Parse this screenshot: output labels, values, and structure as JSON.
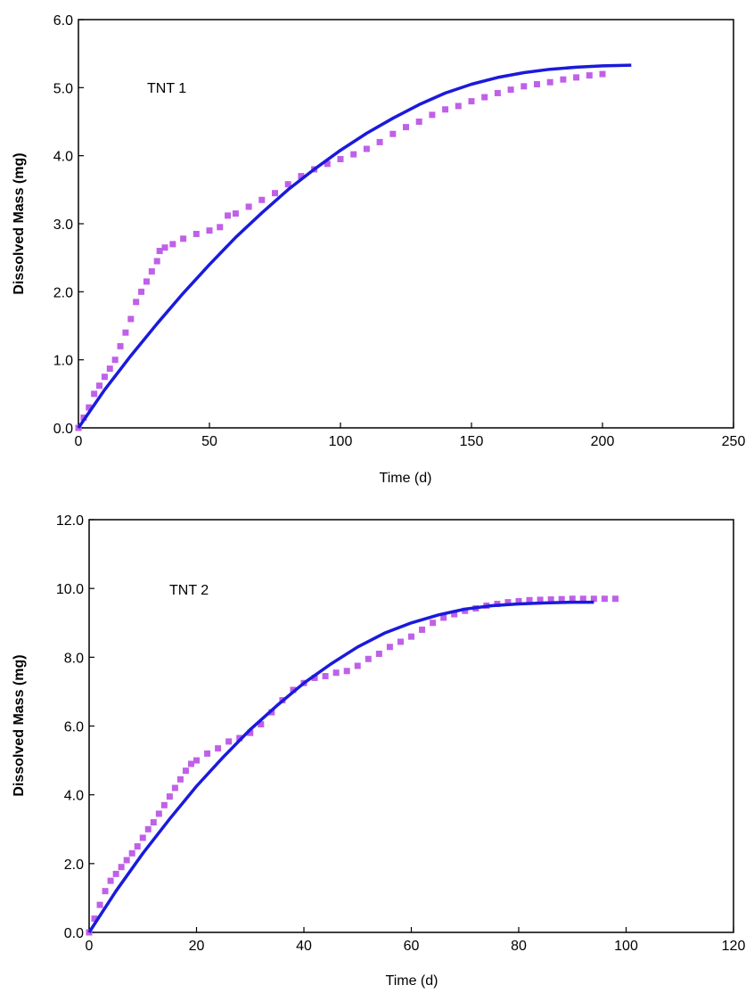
{
  "chart_data": [
    {
      "type": "scatter",
      "annotation": "TNT 1",
      "xlabel": "Time (d)",
      "ylabel": "Dissolved Mass (mg)",
      "xlim": [
        0,
        250
      ],
      "ylim": [
        0,
        6
      ],
      "xticks": [
        "0",
        "50",
        "100",
        "150",
        "200",
        "250"
      ],
      "yticks": [
        "0.0",
        "1.0",
        "2.0",
        "3.0",
        "4.0",
        "5.0",
        "6.0"
      ],
      "grid": false,
      "legend": "none",
      "series": [
        {
          "kind": "line",
          "color": "#1a1adc",
          "x": [
            0,
            10,
            20,
            30,
            40,
            50,
            60,
            70,
            80,
            90,
            100,
            110,
            120,
            130,
            140,
            150,
            160,
            170,
            180,
            190,
            200,
            211
          ],
          "y": [
            0.0,
            0.56,
            1.06,
            1.53,
            1.98,
            2.4,
            2.8,
            3.16,
            3.5,
            3.8,
            4.08,
            4.33,
            4.55,
            4.75,
            4.92,
            5.05,
            5.15,
            5.22,
            5.27,
            5.3,
            5.32,
            5.33
          ]
        },
        {
          "kind": "markers",
          "color": "#c060e8",
          "x": [
            0,
            2,
            4,
            6,
            8,
            10,
            12,
            14,
            16,
            18,
            20,
            22,
            24,
            26,
            28,
            30,
            31,
            33,
            36,
            40,
            45,
            50,
            54,
            57,
            60,
            65,
            70,
            75,
            80,
            85,
            90,
            95,
            100,
            105,
            110,
            115,
            120,
            125,
            130,
            135,
            140,
            145,
            150,
            155,
            160,
            165,
            170,
            175,
            180,
            185,
            190,
            195,
            200
          ],
          "y": [
            0.0,
            0.15,
            0.3,
            0.5,
            0.62,
            0.75,
            0.87,
            1.0,
            1.2,
            1.4,
            1.6,
            1.85,
            2.0,
            2.15,
            2.3,
            2.45,
            2.6,
            2.65,
            2.7,
            2.78,
            2.85,
            2.9,
            2.95,
            3.12,
            3.15,
            3.25,
            3.35,
            3.45,
            3.58,
            3.7,
            3.8,
            3.88,
            3.95,
            4.02,
            4.1,
            4.2,
            4.32,
            4.42,
            4.5,
            4.6,
            4.68,
            4.73,
            4.8,
            4.86,
            4.92,
            4.97,
            5.02,
            5.05,
            5.08,
            5.12,
            5.15,
            5.18,
            5.2
          ]
        }
      ]
    },
    {
      "type": "scatter",
      "annotation": "TNT 2",
      "xlabel": "Time (d)",
      "ylabel": "Dissolved Mass (mg)",
      "xlim": [
        0,
        120
      ],
      "ylim": [
        0,
        12
      ],
      "xticks": [
        "0",
        "20",
        "40",
        "60",
        "80",
        "100",
        "120"
      ],
      "yticks": [
        "0.0",
        "2.0",
        "4.0",
        "6.0",
        "8.0",
        "10.0",
        "12.0"
      ],
      "grid": false,
      "legend": "none",
      "series": [
        {
          "kind": "line",
          "color": "#1a1adc",
          "x": [
            0,
            5,
            10,
            15,
            20,
            25,
            30,
            35,
            40,
            45,
            50,
            55,
            60,
            65,
            70,
            75,
            80,
            85,
            90,
            94
          ],
          "y": [
            0.0,
            1.2,
            2.3,
            3.3,
            4.25,
            5.1,
            5.9,
            6.6,
            7.25,
            7.8,
            8.3,
            8.7,
            9.0,
            9.23,
            9.4,
            9.5,
            9.55,
            9.58,
            9.6,
            9.6
          ]
        },
        {
          "kind": "markers",
          "color": "#c060e8",
          "x": [
            0,
            1,
            2,
            3,
            4,
            5,
            6,
            7,
            8,
            9,
            10,
            11,
            12,
            13,
            14,
            15,
            16,
            17,
            18,
            19,
            20,
            22,
            24,
            26,
            28,
            30,
            32,
            34,
            36,
            38,
            40,
            42,
            44,
            46,
            48,
            50,
            52,
            54,
            56,
            58,
            60,
            62,
            64,
            66,
            68,
            70,
            72,
            74,
            76,
            78,
            80,
            82,
            84,
            86,
            88,
            90,
            92,
            94,
            96,
            98
          ],
          "y": [
            0.0,
            0.4,
            0.8,
            1.2,
            1.5,
            1.7,
            1.9,
            2.1,
            2.3,
            2.5,
            2.75,
            3.0,
            3.2,
            3.45,
            3.7,
            3.95,
            4.2,
            4.45,
            4.7,
            4.9,
            5.0,
            5.2,
            5.35,
            5.55,
            5.65,
            5.8,
            6.05,
            6.4,
            6.75,
            7.05,
            7.25,
            7.4,
            7.45,
            7.55,
            7.6,
            7.75,
            7.95,
            8.1,
            8.3,
            8.45,
            8.6,
            8.8,
            9.0,
            9.15,
            9.25,
            9.35,
            9.42,
            9.5,
            9.55,
            9.6,
            9.63,
            9.66,
            9.67,
            9.68,
            9.69,
            9.7,
            9.7,
            9.7,
            9.7,
            9.7
          ]
        }
      ]
    }
  ]
}
